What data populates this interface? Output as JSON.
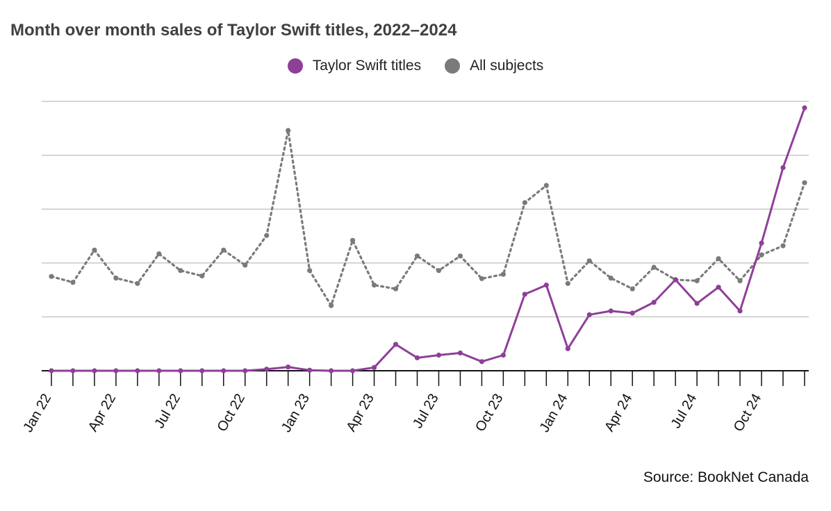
{
  "title": "Month over month sales of Taylor Swift titles, 2022–2024",
  "source": "Source: BookNet Canada",
  "colors": {
    "taylor": "#8e3f98",
    "all": "#7a7a7a",
    "grid": "#c8c8c8",
    "axis": "#111111"
  },
  "chart_data": {
    "type": "line",
    "title": "Month over month sales of Taylor Swift titles, 2022–2024",
    "xlabel": "",
    "ylabel": "",
    "x": [
      "Jan 22",
      "Feb 22",
      "Mar 22",
      "Apr 22",
      "May 22",
      "Jun 22",
      "Jul 22",
      "Aug 22",
      "Sep 22",
      "Oct 22",
      "Nov 22",
      "Dec 22",
      "Jan 23",
      "Feb 23",
      "Mar 23",
      "Apr 23",
      "May 23",
      "Jun 23",
      "Jul 23",
      "Aug 23",
      "Sep 23",
      "Oct 23",
      "Nov 23",
      "Dec 23",
      "Jan 24",
      "Feb 24",
      "Mar 24",
      "Apr 24",
      "May 24",
      "Jun 24",
      "Jul 24",
      "Aug 24",
      "Sep 24",
      "Oct 24",
      "Nov 24",
      "Dec 24"
    ],
    "tick_labels": [
      "Jan 22",
      "Apr 22",
      "Jul 22",
      "Oct 22",
      "Jan 23",
      "Apr 23",
      "Jul 23",
      "Oct 23",
      "Jan 24",
      "Apr 24",
      "Jul 24",
      "Oct 24"
    ],
    "ylim": [
      0,
      5
    ],
    "gridlines": [
      1,
      2,
      3,
      4,
      5
    ],
    "y_tick_labels_shown": false,
    "legend_position": "top-center",
    "series": [
      {
        "name": "Taylor Swift titles",
        "style": "solid",
        "values": [
          0,
          0,
          0,
          0,
          0,
          0,
          0,
          0,
          0,
          0,
          0.03,
          0.07,
          0.01,
          0,
          0,
          0.06,
          0.49,
          0.24,
          0.29,
          0.33,
          0.17,
          0.29,
          1.42,
          1.59,
          0.41,
          1.04,
          1.11,
          1.07,
          1.27,
          1.69,
          1.25,
          1.55,
          1.11,
          2.37,
          3.77,
          4.88
        ]
      },
      {
        "name": "All subjects",
        "style": "dotted",
        "values": [
          1.75,
          1.64,
          2.24,
          1.72,
          1.62,
          2.17,
          1.86,
          1.76,
          2.24,
          1.96,
          2.51,
          4.46,
          1.86,
          1.21,
          2.42,
          1.59,
          1.52,
          2.13,
          1.86,
          2.13,
          1.71,
          1.79,
          3.12,
          3.44,
          1.62,
          2.04,
          1.72,
          1.52,
          1.92,
          1.69,
          1.67,
          2.08,
          1.67,
          2.15,
          2.32,
          3.49
        ]
      }
    ]
  }
}
